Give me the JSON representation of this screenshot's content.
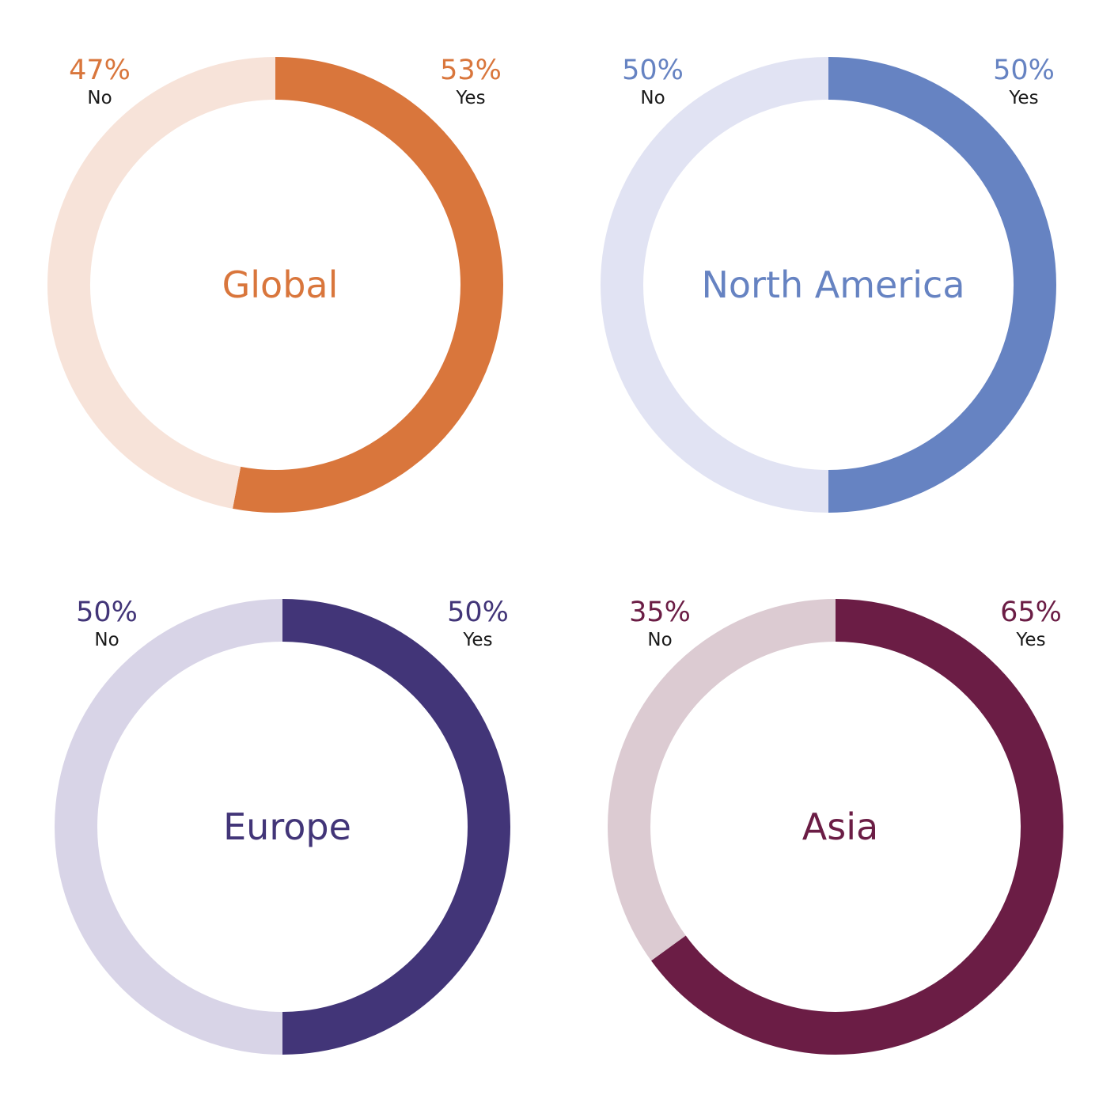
{
  "chart_data": [
    {
      "type": "pie",
      "variant": "donut",
      "title": "Global",
      "categories": [
        "Yes",
        "No"
      ],
      "values": [
        53,
        47
      ],
      "value_labels": [
        "53%",
        "47%"
      ],
      "colors": {
        "Yes": "#D9763C",
        "No": "#F7E3D9"
      }
    },
    {
      "type": "pie",
      "variant": "donut",
      "title": "North America",
      "categories": [
        "Yes",
        "No"
      ],
      "values": [
        50,
        50
      ],
      "value_labels": [
        "50%",
        "50%"
      ],
      "colors": {
        "Yes": "#6683C2",
        "No": "#E1E3F3"
      }
    },
    {
      "type": "pie",
      "variant": "donut",
      "title": "Europe",
      "categories": [
        "Yes",
        "No"
      ],
      "values": [
        50,
        50
      ],
      "value_labels": [
        "50%",
        "50%"
      ],
      "colors": {
        "Yes": "#423578",
        "No": "#D8D4E7"
      }
    },
    {
      "type": "pie",
      "variant": "donut",
      "title": "Asia",
      "categories": [
        "Yes",
        "No"
      ],
      "values": [
        65,
        35
      ],
      "value_labels": [
        "65%",
        "35%"
      ],
      "colors": {
        "Yes": "#6B1D45",
        "No": "#DCCBD2"
      }
    }
  ]
}
